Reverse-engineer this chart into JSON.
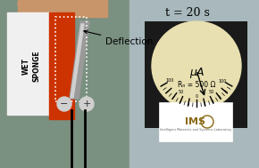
{
  "title": "t = 20 s",
  "annotation_deflection": "Deflection",
  "annotation_mu": "μA",
  "annotation_R": "Rₙ = 500 Ω",
  "annotation_label": "WET\nSPONGE",
  "bg_color_left": "#8a9a7a",
  "bg_color_right": "#a0adb0",
  "title_fontsize": 9,
  "deflection_fontsize": 7.5,
  "fig_width": 2.9,
  "fig_height": 1.89,
  "dpi": 100
}
